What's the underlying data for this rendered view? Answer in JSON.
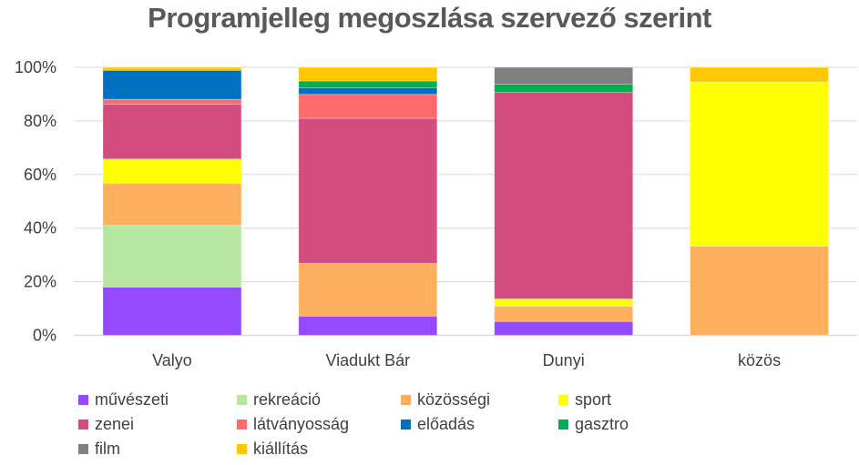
{
  "chart_data": {
    "type": "bar",
    "stacked": "percent",
    "title": "Programjelleg megoszlása szervező szerint",
    "xlabel": "",
    "ylabel": "",
    "ylim": [
      0,
      100
    ],
    "yticks": [
      "0%",
      "20%",
      "40%",
      "60%",
      "80%",
      "100%"
    ],
    "grid": true,
    "legend_position": "bottom",
    "categories": [
      "Valyo",
      "Viadukt Bár",
      "Dunyi",
      "közös"
    ],
    "series": [
      {
        "name": "művészeti",
        "color": "#944BFF",
        "values": [
          18.0,
          7.2,
          5.2,
          0
        ]
      },
      {
        "name": "rekreáció",
        "color": "#B6E6A2",
        "values": [
          23.0,
          0,
          0,
          0
        ]
      },
      {
        "name": "közösségi",
        "color": "#FFB05E",
        "values": [
          15.8,
          19.7,
          5.7,
          33.3
        ]
      },
      {
        "name": "sport",
        "color": "#FFFF00",
        "values": [
          9.0,
          0,
          2.7,
          61.2
        ]
      },
      {
        "name": "zenei",
        "color": "#D44B7D",
        "values": [
          20.4,
          54.1,
          77.0,
          0
        ]
      },
      {
        "name": "látványosság",
        "color": "#FF6B6B",
        "values": [
          1.9,
          8.9,
          0,
          0
        ]
      },
      {
        "name": "előadás",
        "color": "#0070C0",
        "values": [
          10.8,
          2.5,
          0,
          0
        ]
      },
      {
        "name": "gasztro",
        "color": "#00B050",
        "values": [
          0,
          2.5,
          3.1,
          0
        ]
      },
      {
        "name": "film",
        "color": "#808080",
        "values": [
          0,
          0,
          6.3,
          0
        ]
      },
      {
        "name": "kiállítás",
        "color": "#FFC800",
        "values": [
          1.1,
          5.1,
          0,
          5.5
        ]
      }
    ]
  }
}
